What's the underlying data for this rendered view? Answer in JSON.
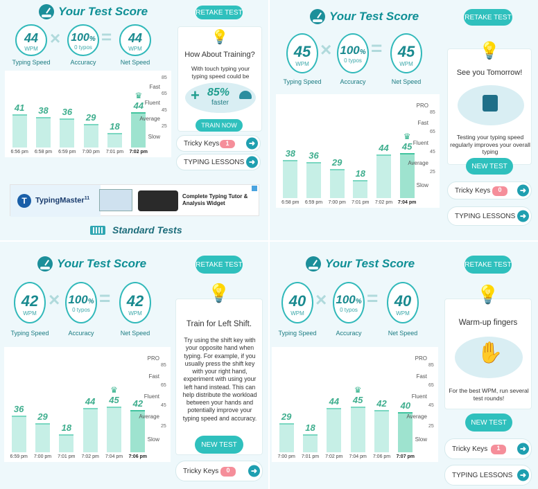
{
  "panels": [
    {
      "title": "Your Test Score",
      "retake": "RETAKE TEST",
      "typing_speed": {
        "value": "44",
        "unit": "WPM",
        "label": "Typing Speed"
      },
      "accuracy": {
        "value": "100",
        "unit": "%",
        "sub": "0 typos",
        "label": "Accuracy"
      },
      "net_speed": {
        "value": "44",
        "unit": "WPM",
        "label": "Net Speed"
      },
      "chart_data": {
        "type": "bar",
        "categories": [
          "6:56 pm",
          "6:58 pm",
          "6:59 pm",
          "7:00 pm",
          "7:01 pm",
          "7:02 pm"
        ],
        "values": [
          41,
          38,
          36,
          29,
          18,
          44
        ],
        "value_labels": [
          "41",
          "38",
          "36",
          "29",
          "18",
          "44"
        ],
        "zones": [
          "Fast",
          "Fluent",
          "Average",
          "Slow"
        ],
        "ticks": [
          "85",
          "65",
          "45",
          "25"
        ],
        "ylim": [
          0,
          90
        ]
      },
      "card": {
        "title": "How About Training?",
        "text": "With touch typing your typing speed could be",
        "percent": "85%",
        "suffix": "faster",
        "button": "TRAIN NOW"
      },
      "tricky": {
        "label": "Tricky Keys",
        "count": "1"
      },
      "lessons": {
        "label": "TYPING LESSONS"
      },
      "ad": {
        "brand": "TypingMaster",
        "brand_sup": "11",
        "headline": "Complete Typing Tutor & Analysis Widget"
      },
      "standard": "Standard Tests"
    },
    {
      "title": "Your Test Score",
      "retake": "RETAKE TEST",
      "typing_speed": {
        "value": "45",
        "unit": "WPM",
        "label": "Typing Speed"
      },
      "accuracy": {
        "value": "100",
        "unit": "%",
        "sub": "0 typos",
        "label": "Accuracy"
      },
      "net_speed": {
        "value": "45",
        "unit": "WPM",
        "label": "Net Speed"
      },
      "chart_data": {
        "type": "bar",
        "categories": [
          "6:58 pm",
          "6:59 pm",
          "7:00 pm",
          "7:01 pm",
          "7:02 pm",
          "7:04 pm"
        ],
        "values": [
          38,
          36,
          29,
          18,
          44,
          45
        ],
        "value_labels": [
          "38",
          "36",
          "29",
          "18",
          "44",
          "45"
        ],
        "zones": [
          "PRO",
          "Fast",
          "Fluent",
          "Average",
          "Slow"
        ],
        "ticks": [
          "85",
          "65",
          "45",
          "25"
        ],
        "ylim": [
          0,
          100
        ]
      },
      "card": {
        "title": "See you Tomorrow!",
        "text": "Testing your typing speed regularly improves your overall typing",
        "button": "NEW TEST"
      },
      "tricky": {
        "label": "Tricky Keys",
        "count": "0"
      },
      "lessons": {
        "label": "TYPING LESSONS"
      }
    },
    {
      "title": "Your Test Score",
      "retake": "RETAKE TEST",
      "typing_speed": {
        "value": "42",
        "unit": "WPM",
        "label": "Typing Speed"
      },
      "accuracy": {
        "value": "100",
        "unit": "%",
        "sub": "0 typos",
        "label": "Accuracy"
      },
      "net_speed": {
        "value": "42",
        "unit": "WPM",
        "label": "Net Speed"
      },
      "chart_data": {
        "type": "bar",
        "categories": [
          "6:59 pm",
          "7:00 pm",
          "7:01 pm",
          "7:02 pm",
          "7:04 pm",
          "7:06 pm"
        ],
        "values": [
          36,
          29,
          18,
          44,
          45,
          42
        ],
        "value_labels": [
          "36",
          "29",
          "18",
          "44",
          "45",
          "42"
        ],
        "zones": [
          "PRO",
          "Fast",
          "Fluent",
          "Average",
          "Slow"
        ],
        "ticks": [
          "85",
          "65",
          "45",
          "25"
        ],
        "ylim": [
          0,
          100
        ]
      },
      "card": {
        "title": "Train for Left Shift.",
        "text": "Try using the shift key with your opposite hand when typing. For example, if you usually press the shift key with your right hand, experiment with using your left hand instead. This can help distribute the workload between your hands and potentially improve your typing speed and accuracy.",
        "button": "NEW TEST"
      },
      "tricky": {
        "label": "Tricky Keys",
        "count": "0"
      }
    },
    {
      "title": "Your Test Score",
      "retake": "RETAKE TEST",
      "typing_speed": {
        "value": "40",
        "unit": "WPM",
        "label": "Typing Speed"
      },
      "accuracy": {
        "value": "100",
        "unit": "%",
        "sub": "0 typos",
        "label": "Accuracy"
      },
      "net_speed": {
        "value": "40",
        "unit": "WPM",
        "label": "Net Speed"
      },
      "chart_data": {
        "type": "bar",
        "categories": [
          "7:00 pm",
          "7:01 pm",
          "7:02 pm",
          "7:04 pm",
          "7:06 pm",
          "7:07 pm"
        ],
        "values": [
          29,
          18,
          44,
          45,
          42,
          40
        ],
        "value_labels": [
          "29",
          "18",
          "44",
          "45",
          "42",
          "40"
        ],
        "zones": [
          "PRO",
          "Fast",
          "Fluent",
          "Average",
          "Slow"
        ],
        "ticks": [
          "85",
          "65",
          "45",
          "25"
        ],
        "ylim": [
          0,
          100
        ]
      },
      "card": {
        "title": "Warm-up fingers",
        "text": "For the best WPM, run several test rounds!",
        "button": "NEW TEST"
      },
      "tricky": {
        "label": "Tricky Keys",
        "count": "1"
      },
      "lessons": {
        "label": "TYPING LESSONS"
      }
    }
  ]
}
